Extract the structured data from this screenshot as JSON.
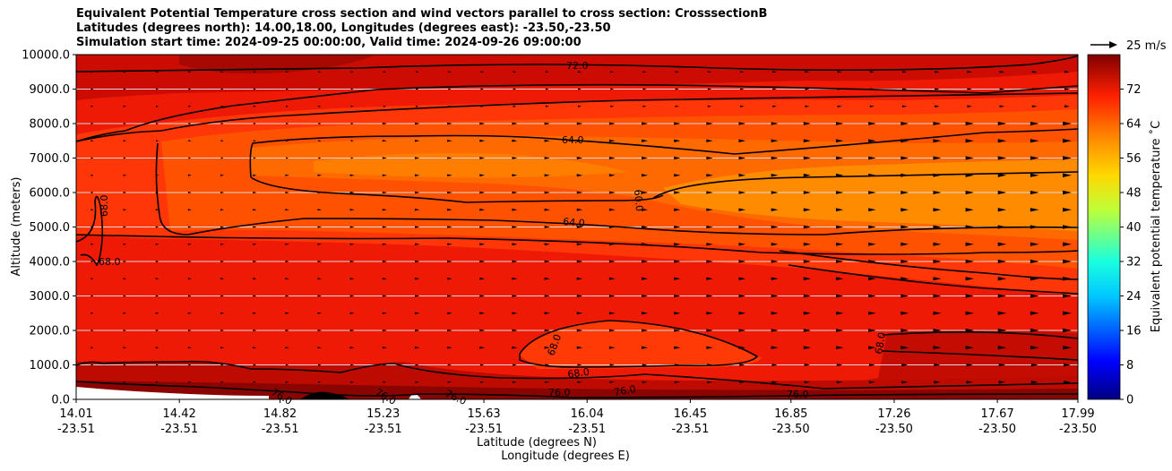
{
  "title_lines": [
    "Equivalent Potential Temperature cross section and wind vectors parallel to cross section: CrosssectionB",
    "Latitudes (degrees north): 14.00,18.00, Longitudes (degrees east): -23.50,-23.50",
    "Simulation start time: 2024-09-25 00:00:00, Valid time: 2024-09-26 09:00:00"
  ],
  "chart_data": {
    "type": "contour-cross-section",
    "ylabel": "Altitude (meters)",
    "xlabel_lat": "Latitude (degrees N)",
    "xlabel_lon": "Longitude (degrees E)",
    "ylim": [
      0,
      10000
    ],
    "y_ticks": [
      "0.0",
      "1000.0",
      "2000.0",
      "3000.0",
      "4000.0",
      "5000.0",
      "6000.0",
      "7000.0",
      "8000.0",
      "9000.0",
      "10000.0"
    ],
    "x_ticks": [
      {
        "lat": "14.01",
        "lon": "-23.51",
        "value": 14.01
      },
      {
        "lat": "14.42",
        "lon": "-23.51",
        "value": 14.42
      },
      {
        "lat": "14.82",
        "lon": "-23.51",
        "value": 14.82
      },
      {
        "lat": "15.23",
        "lon": "-23.51",
        "value": 15.23
      },
      {
        "lat": "15.63",
        "lon": "-23.51",
        "value": 15.63
      },
      {
        "lat": "16.04",
        "lon": "-23.51",
        "value": 16.04
      },
      {
        "lat": "16.45",
        "lon": "-23.51",
        "value": 16.45
      },
      {
        "lat": "16.85",
        "lon": "-23.50",
        "value": 16.85
      },
      {
        "lat": "17.26",
        "lon": "-23.50",
        "value": 17.26
      },
      {
        "lat": "17.67",
        "lon": "-23.50",
        "value": 17.67
      },
      {
        "lat": "17.99",
        "lon": "-23.50",
        "value": 17.99
      }
    ],
    "xlim": [
      14.01,
      17.99
    ],
    "colorbar": {
      "label": "Equivalent potential temperature ˚C",
      "range": [
        0,
        80
      ],
      "ticks": [
        "0",
        "8",
        "16",
        "24",
        "32",
        "40",
        "48",
        "56",
        "64",
        "72"
      ]
    },
    "quiver_key": "25 m/s",
    "contour_labels": [
      "72.0",
      "64.0",
      "64.0",
      "60.0",
      "68.0",
      "68.0",
      "68.0",
      "68.0",
      "68.0",
      "76.0",
      "76.0",
      "76.0",
      "76.0",
      "76.0",
      "76.0"
    ]
  }
}
